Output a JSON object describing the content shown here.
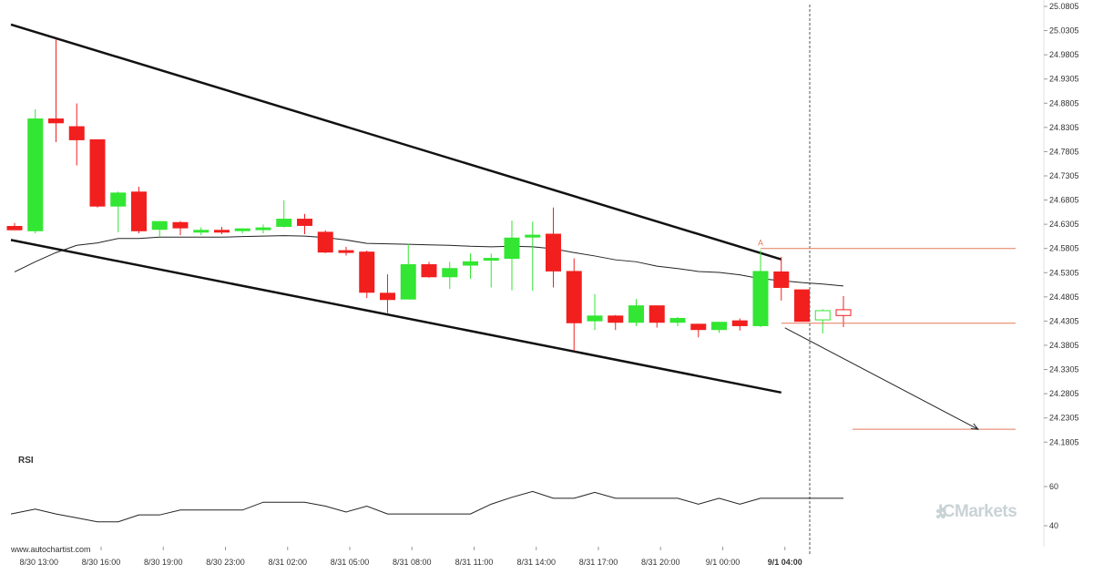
{
  "chart_data": {
    "type": "candlestick",
    "title": "",
    "y_axis": {
      "ticks": [
        "25.0805",
        "25.0305",
        "24.9805",
        "24.9305",
        "24.8805",
        "24.8305",
        "24.7805",
        "24.7305",
        "24.6805",
        "24.6305",
        "24.5805",
        "24.5305",
        "24.4805",
        "24.4305",
        "24.3805",
        "24.3305",
        "24.2805",
        "24.2305",
        "24.1805"
      ],
      "range": [
        24.16,
        25.0805
      ]
    },
    "x_axis": {
      "labels": [
        "8/30 13:00",
        "8/30 16:00",
        "8/30 19:00",
        "8/30 23:00",
        "8/31 02:00",
        "8/31 05:00",
        "8/31 08:00",
        "8/31 11:00",
        "8/31 14:00",
        "8/31 17:00",
        "8/31 20:00",
        "9/1 00:00",
        "9/1 04:00"
      ],
      "label_bar_index": [
        1,
        4,
        7,
        10,
        13,
        16,
        19,
        22,
        25,
        28,
        31,
        34,
        37
      ],
      "highlight": "9/1 04:00"
    },
    "candles": [
      {
        "o": 24.626,
        "h": 24.633,
        "l": 24.619,
        "c": 24.619
      },
      {
        "o": 24.617,
        "h": 24.868,
        "l": 24.612,
        "c": 24.848
      },
      {
        "o": 24.848,
        "h": 25.013,
        "l": 24.8,
        "c": 24.84
      },
      {
        "o": 24.832,
        "h": 24.88,
        "l": 24.752,
        "c": 24.805
      },
      {
        "o": 24.805,
        "h": 24.805,
        "l": 24.665,
        "c": 24.668
      },
      {
        "o": 24.668,
        "h": 24.698,
        "l": 24.614,
        "c": 24.695
      },
      {
        "o": 24.697,
        "h": 24.708,
        "l": 24.612,
        "c": 24.617
      },
      {
        "o": 24.62,
        "h": 24.637,
        "l": 24.605,
        "c": 24.636
      },
      {
        "o": 24.634,
        "h": 24.637,
        "l": 24.608,
        "c": 24.623
      },
      {
        "o": 24.616,
        "h": 24.624,
        "l": 24.608,
        "c": 24.618
      },
      {
        "o": 24.618,
        "h": 24.625,
        "l": 24.61,
        "c": 24.616
      },
      {
        "o": 24.619,
        "h": 24.622,
        "l": 24.612,
        "c": 24.621
      },
      {
        "o": 24.622,
        "h": 24.63,
        "l": 24.612,
        "c": 24.623
      },
      {
        "o": 24.626,
        "h": 24.68,
        "l": 24.624,
        "c": 24.641
      },
      {
        "o": 24.641,
        "h": 24.652,
        "l": 24.61,
        "c": 24.628
      },
      {
        "o": 24.614,
        "h": 24.618,
        "l": 24.571,
        "c": 24.573
      },
      {
        "o": 24.576,
        "h": 24.584,
        "l": 24.566,
        "c": 24.575
      },
      {
        "o": 24.573,
        "h": 24.576,
        "l": 24.478,
        "c": 24.49
      },
      {
        "o": 24.488,
        "h": 24.527,
        "l": 24.447,
        "c": 24.475
      },
      {
        "o": 24.476,
        "h": 24.59,
        "l": 24.476,
        "c": 24.547
      },
      {
        "o": 24.547,
        "h": 24.553,
        "l": 24.52,
        "c": 24.522
      },
      {
        "o": 24.522,
        "h": 24.553,
        "l": 24.497,
        "c": 24.539
      },
      {
        "o": 24.546,
        "h": 24.57,
        "l": 24.518,
        "c": 24.553
      },
      {
        "o": 24.557,
        "h": 24.57,
        "l": 24.5,
        "c": 24.56
      },
      {
        "o": 24.56,
        "h": 24.638,
        "l": 24.494,
        "c": 24.602
      },
      {
        "o": 24.604,
        "h": 24.636,
        "l": 24.493,
        "c": 24.608
      },
      {
        "o": 24.61,
        "h": 24.665,
        "l": 24.5,
        "c": 24.534
      },
      {
        "o": 24.533,
        "h": 24.56,
        "l": 24.369,
        "c": 24.427
      },
      {
        "o": 24.431,
        "h": 24.486,
        "l": 24.412,
        "c": 24.441
      },
      {
        "o": 24.441,
        "h": 24.443,
        "l": 24.412,
        "c": 24.428
      },
      {
        "o": 24.428,
        "h": 24.476,
        "l": 24.42,
        "c": 24.462
      },
      {
        "o": 24.462,
        "h": 24.463,
        "l": 24.417,
        "c": 24.428
      },
      {
        "o": 24.428,
        "h": 24.439,
        "l": 24.42,
        "c": 24.436
      },
      {
        "o": 24.424,
        "h": 24.425,
        "l": 24.397,
        "c": 24.413
      },
      {
        "o": 24.413,
        "h": 24.429,
        "l": 24.406,
        "c": 24.428
      },
      {
        "o": 24.431,
        "h": 24.436,
        "l": 24.411,
        "c": 24.421
      },
      {
        "o": 24.421,
        "h": 24.577,
        "l": 24.418,
        "c": 24.533
      },
      {
        "o": 24.532,
        "h": 24.563,
        "l": 24.473,
        "c": 24.5
      },
      {
        "o": 24.495,
        "h": 24.495,
        "l": 24.43,
        "c": 24.43
      },
      {
        "o": 24.433,
        "h": 24.455,
        "l": 24.405,
        "c": 24.452
      },
      {
        "o": 24.454,
        "h": 24.482,
        "l": 24.418,
        "c": 24.442
      }
    ],
    "moving_average": [
      24.532,
      24.553,
      24.572,
      24.587,
      24.592,
      24.601,
      24.601,
      24.604,
      24.604,
      24.604,
      24.604,
      24.605,
      24.606,
      24.607,
      24.606,
      24.603,
      24.598,
      24.591,
      24.59,
      24.589,
      24.588,
      24.587,
      24.585,
      24.584,
      24.585,
      24.584,
      24.58,
      24.572,
      24.565,
      24.557,
      24.553,
      24.544,
      24.539,
      24.533,
      24.531,
      24.526,
      24.518,
      24.514,
      24.51,
      24.507,
      24.503
    ],
    "channel": {
      "upper": {
        "from_bar": 0,
        "from_price": 25.043,
        "to_bar": 37,
        "to_price": 24.558
      },
      "lower": {
        "from_bar": 0,
        "from_price": 24.598,
        "to_bar": 37,
        "to_price": 24.283
      }
    },
    "pattern_label": "A",
    "resistance_level": 24.5805,
    "support_level": 24.426,
    "target_level": 24.207,
    "projection": {
      "from_bar": 37,
      "from_price": 24.426,
      "to_bar": 46.5,
      "to_price": 24.207
    },
    "rsi": {
      "title": "RSI",
      "ticks": [
        "60",
        "40"
      ],
      "range": [
        30,
        70
      ],
      "values": [
        46,
        48.5,
        46,
        44,
        42,
        42,
        45.5,
        45.5,
        48,
        48,
        48,
        48,
        52,
        52,
        52,
        50,
        47,
        50,
        46,
        46,
        46,
        46,
        46,
        51,
        54.5,
        57.5,
        54,
        54,
        57,
        54,
        54,
        54,
        54,
        51,
        54,
        51,
        54,
        54,
        54,
        54,
        54
      ]
    }
  },
  "colors": {
    "bull": "#33e633",
    "bear": "#f21f1f",
    "level_line": "#e47a5a",
    "axis": "#333333"
  },
  "watermark": "www.autochartist.com",
  "broker_logo": "ICMarkets"
}
